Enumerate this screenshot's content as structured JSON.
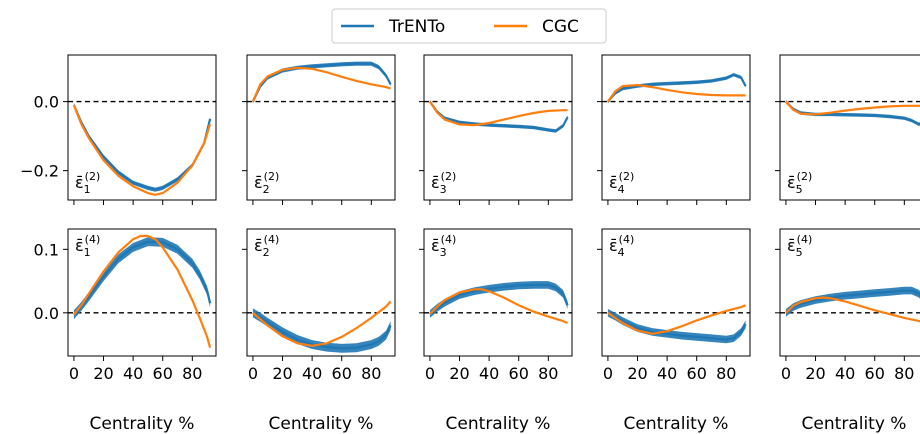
{
  "legend": {
    "entries": [
      {
        "label": "TrENTo",
        "color": "#1f77b4"
      },
      {
        "label": "CGC",
        "color": "#ff7f0e"
      }
    ],
    "placement": "top-center"
  },
  "chart_data": {
    "type": "line",
    "xlabel": "Centrality %",
    "x_ticks": [
      0,
      20,
      40,
      60,
      80
    ],
    "xlim": [
      -4,
      96
    ],
    "grid": false,
    "reference_line": {
      "y": 0.0,
      "style": "dashed",
      "color": "#000000"
    },
    "series_colors": {
      "TrENTo": "#1f77b4",
      "CGC": "#ff7f0e"
    },
    "rows": [
      {
        "ylim": [
          -0.285,
          0.135
        ],
        "y_ticks": [
          0.0,
          -0.2
        ],
        "y_tick_labels": [
          "0.0",
          "−0.2"
        ],
        "panels": [
          {
            "name": "eps1-2",
            "sym": "ε̄",
            "sub": "1",
            "sup": "(2)",
            "label_pos": "bottom",
            "series": [
              {
                "name": "TrENTo",
                "band": 0.006,
                "x": [
                  0,
                  5,
                  10,
                  20,
                  30,
                  40,
                  50,
                  55,
                  60,
                  70,
                  80,
                  88,
                  92
                ],
                "y": [
                  -0.01,
                  -0.06,
                  -0.1,
                  -0.16,
                  -0.205,
                  -0.235,
                  -0.25,
                  -0.255,
                  -0.25,
                  -0.225,
                  -0.185,
                  -0.12,
                  -0.05
                ]
              },
              {
                "name": "CGC",
                "x": [
                  0,
                  5,
                  10,
                  20,
                  30,
                  40,
                  50,
                  55,
                  60,
                  70,
                  80,
                  88,
                  92
                ],
                "y": [
                  -0.01,
                  -0.065,
                  -0.105,
                  -0.17,
                  -0.215,
                  -0.245,
                  -0.265,
                  -0.27,
                  -0.265,
                  -0.235,
                  -0.185,
                  -0.12,
                  -0.065
                ]
              }
            ]
          },
          {
            "name": "eps2-2",
            "sym": "ε̄",
            "sub": "2",
            "sup": "(2)",
            "label_pos": "bottom",
            "series": [
              {
                "name": "TrENTo",
                "band": 0.006,
                "x": [
                  0,
                  5,
                  10,
                  20,
                  30,
                  40,
                  50,
                  60,
                  70,
                  80,
                  85,
                  90,
                  93
                ],
                "y": [
                  0.0,
                  0.045,
                  0.07,
                  0.09,
                  0.098,
                  0.102,
                  0.105,
                  0.108,
                  0.11,
                  0.11,
                  0.1,
                  0.075,
                  0.05
                ]
              },
              {
                "name": "CGC",
                "x": [
                  0,
                  5,
                  10,
                  20,
                  30,
                  40,
                  50,
                  60,
                  70,
                  80,
                  90,
                  93
                ],
                "y": [
                  0.0,
                  0.05,
                  0.073,
                  0.092,
                  0.098,
                  0.095,
                  0.085,
                  0.072,
                  0.06,
                  0.05,
                  0.042,
                  0.038
                ]
              }
            ]
          },
          {
            "name": "eps3-2",
            "sym": "ε̄",
            "sub": "3",
            "sup": "(2)",
            "label_pos": "bottom",
            "series": [
              {
                "name": "TrENTo",
                "band": 0.005,
                "x": [
                  0,
                  5,
                  10,
                  20,
                  30,
                  40,
                  50,
                  60,
                  70,
                  80,
                  85,
                  90,
                  93
                ],
                "y": [
                  0.0,
                  -0.03,
                  -0.048,
                  -0.06,
                  -0.065,
                  -0.068,
                  -0.07,
                  -0.072,
                  -0.075,
                  -0.082,
                  -0.085,
                  -0.07,
                  -0.045
                ]
              },
              {
                "name": "CGC",
                "x": [
                  0,
                  5,
                  10,
                  20,
                  30,
                  40,
                  50,
                  60,
                  70,
                  80,
                  90,
                  93
                ],
                "y": [
                  0.0,
                  -0.032,
                  -0.052,
                  -0.066,
                  -0.068,
                  -0.062,
                  -0.052,
                  -0.042,
                  -0.033,
                  -0.027,
                  -0.025,
                  -0.025
                ]
              }
            ]
          },
          {
            "name": "eps4-2",
            "sym": "ε̄",
            "sub": "4",
            "sup": "(2)",
            "label_pos": "bottom",
            "series": [
              {
                "name": "TrENTo",
                "band": 0.005,
                "x": [
                  0,
                  5,
                  10,
                  20,
                  30,
                  40,
                  50,
                  60,
                  70,
                  80,
                  85,
                  90,
                  93
                ],
                "y": [
                  0.0,
                  0.025,
                  0.038,
                  0.045,
                  0.05,
                  0.052,
                  0.054,
                  0.056,
                  0.06,
                  0.068,
                  0.078,
                  0.07,
                  0.045
                ]
              },
              {
                "name": "CGC",
                "x": [
                  0,
                  5,
                  10,
                  20,
                  30,
                  40,
                  50,
                  60,
                  70,
                  80,
                  90,
                  93
                ],
                "y": [
                  0.0,
                  0.03,
                  0.045,
                  0.048,
                  0.042,
                  0.034,
                  0.027,
                  0.022,
                  0.019,
                  0.018,
                  0.018,
                  0.018
                ]
              }
            ]
          },
          {
            "name": "eps5-2",
            "sym": "ε̄",
            "sub": "5",
            "sup": "(2)",
            "label_pos": "bottom",
            "series": [
              {
                "name": "TrENTo",
                "band": 0.005,
                "x": [
                  0,
                  5,
                  10,
                  20,
                  30,
                  40,
                  50,
                  60,
                  70,
                  80,
                  85,
                  90,
                  93
                ],
                "y": [
                  0.0,
                  -0.022,
                  -0.033,
                  -0.037,
                  -0.037,
                  -0.038,
                  -0.039,
                  -0.04,
                  -0.043,
                  -0.048,
                  -0.055,
                  -0.066,
                  -0.055
                ]
              },
              {
                "name": "CGC",
                "x": [
                  0,
                  5,
                  10,
                  20,
                  30,
                  40,
                  50,
                  60,
                  70,
                  80,
                  90,
                  93
                ],
                "y": [
                  0.0,
                  -0.024,
                  -0.035,
                  -0.037,
                  -0.032,
                  -0.026,
                  -0.021,
                  -0.017,
                  -0.014,
                  -0.012,
                  -0.012,
                  -0.012
                ]
              }
            ]
          }
        ]
      },
      {
        "ylim": [
          -0.068,
          0.132
        ],
        "y_ticks": [
          0.1,
          0.0
        ],
        "y_tick_labels": [
          "0.1",
          "0.0"
        ],
        "panels": [
          {
            "name": "eps1-4",
            "sym": "ε̄",
            "sub": "1",
            "sup": "(4)",
            "label_pos": "top",
            "series": [
              {
                "name": "TrENTo",
                "band": 0.007,
                "x": [
                  0,
                  5,
                  10,
                  20,
                  30,
                  40,
                  50,
                  60,
                  70,
                  80,
                  85,
                  90,
                  92
                ],
                "y": [
                  -0.003,
                  0.01,
                  0.025,
                  0.057,
                  0.085,
                  0.103,
                  0.112,
                  0.111,
                  0.1,
                  0.078,
                  0.06,
                  0.035,
                  0.015
                ]
              },
              {
                "name": "CGC",
                "x": [
                  0,
                  5,
                  10,
                  20,
                  30,
                  40,
                  45,
                  50,
                  55,
                  60,
                  70,
                  80,
                  85,
                  90,
                  92
                ],
                "y": [
                  -0.003,
                  0.012,
                  0.03,
                  0.065,
                  0.095,
                  0.116,
                  0.121,
                  0.121,
                  0.116,
                  0.103,
                  0.068,
                  0.02,
                  -0.008,
                  -0.038,
                  -0.055
                ]
              }
            ]
          },
          {
            "name": "eps2-4",
            "sym": "ε̄",
            "sub": "2",
            "sup": "(4)",
            "label_pos": "top",
            "series": [
              {
                "name": "TrENTo",
                "band": 0.007,
                "x": [
                  0,
                  5,
                  10,
                  20,
                  30,
                  40,
                  50,
                  60,
                  70,
                  80,
                  85,
                  90,
                  93
                ],
                "y": [
                  0.0,
                  -0.007,
                  -0.015,
                  -0.03,
                  -0.042,
                  -0.05,
                  -0.054,
                  -0.056,
                  -0.055,
                  -0.05,
                  -0.045,
                  -0.035,
                  -0.02
                ]
              },
              {
                "name": "CGC",
                "x": [
                  0,
                  5,
                  10,
                  20,
                  30,
                  40,
                  50,
                  60,
                  70,
                  80,
                  90,
                  93
                ],
                "y": [
                  0.0,
                  -0.01,
                  -0.02,
                  -0.037,
                  -0.048,
                  -0.052,
                  -0.048,
                  -0.038,
                  -0.024,
                  -0.008,
                  0.01,
                  0.018
                ]
              }
            ]
          },
          {
            "name": "eps3-4",
            "sym": "ε̄",
            "sub": "3",
            "sup": "(4)",
            "label_pos": "top",
            "series": [
              {
                "name": "TrENTo",
                "band": 0.006,
                "x": [
                  0,
                  5,
                  10,
                  20,
                  30,
                  40,
                  50,
                  60,
                  70,
                  80,
                  85,
                  90,
                  93
                ],
                "y": [
                  -0.002,
                  0.008,
                  0.016,
                  0.028,
                  0.034,
                  0.038,
                  0.041,
                  0.043,
                  0.044,
                  0.044,
                  0.04,
                  0.03,
                  0.012
                ]
              },
              {
                "name": "CGC",
                "x": [
                  0,
                  5,
                  10,
                  20,
                  30,
                  35,
                  40,
                  50,
                  60,
                  70,
                  80,
                  90,
                  93
                ],
                "y": [
                  -0.002,
                  0.01,
                  0.02,
                  0.032,
                  0.037,
                  0.037,
                  0.034,
                  0.024,
                  0.012,
                  0.002,
                  -0.006,
                  -0.013,
                  -0.016
                ]
              }
            ]
          },
          {
            "name": "eps4-4",
            "sym": "ε̄",
            "sub": "4",
            "sup": "(4)",
            "label_pos": "top",
            "series": [
              {
                "name": "TrENTo",
                "band": 0.006,
                "x": [
                  0,
                  5,
                  10,
                  20,
                  30,
                  40,
                  50,
                  60,
                  70,
                  80,
                  85,
                  90,
                  93
                ],
                "y": [
                  0.0,
                  -0.006,
                  -0.013,
                  -0.024,
                  -0.03,
                  -0.033,
                  -0.036,
                  -0.038,
                  -0.04,
                  -0.042,
                  -0.04,
                  -0.03,
                  -0.018
                ]
              },
              {
                "name": "CGC",
                "x": [
                  0,
                  5,
                  10,
                  20,
                  30,
                  40,
                  50,
                  60,
                  70,
                  80,
                  90,
                  93
                ],
                "y": [
                  0.0,
                  -0.008,
                  -0.016,
                  -0.028,
                  -0.033,
                  -0.029,
                  -0.021,
                  -0.012,
                  -0.004,
                  0.003,
                  0.009,
                  0.012
                ]
              }
            ]
          },
          {
            "name": "eps5-4",
            "sym": "ε̄",
            "sub": "5",
            "sup": "(4)",
            "label_pos": "top",
            "series": [
              {
                "name": "TrENTo",
                "band": 0.006,
                "x": [
                  0,
                  5,
                  10,
                  20,
                  30,
                  40,
                  50,
                  60,
                  70,
                  80,
                  85,
                  90,
                  93
                ],
                "y": [
                  0.0,
                  0.009,
                  0.014,
                  0.02,
                  0.024,
                  0.027,
                  0.029,
                  0.031,
                  0.033,
                  0.035,
                  0.035,
                  0.03,
                  0.02
                ]
              },
              {
                "name": "CGC",
                "x": [
                  0,
                  5,
                  10,
                  20,
                  25,
                  30,
                  40,
                  50,
                  60,
                  70,
                  80,
                  90,
                  93
                ],
                "y": [
                  0.0,
                  0.011,
                  0.017,
                  0.023,
                  0.024,
                  0.023,
                  0.018,
                  0.011,
                  0.004,
                  -0.002,
                  -0.008,
                  -0.013,
                  -0.015
                ]
              }
            ]
          }
        ]
      }
    ]
  }
}
